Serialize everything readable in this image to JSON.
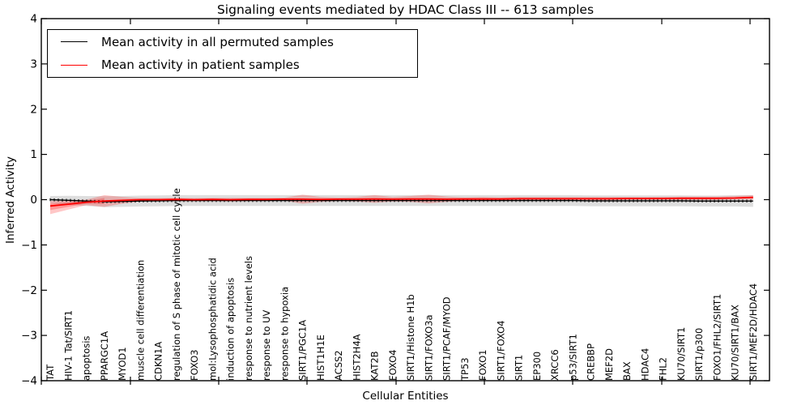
{
  "title": "Signaling events mediated by HDAC Class III -- 613 samples",
  "legend": {
    "items": [
      {
        "label": "Mean activity in all permuted samples",
        "color": "#000000"
      },
      {
        "label": "Mean activity in patient samples",
        "color": "#ff0000"
      }
    ]
  },
  "chart_data": {
    "type": "line",
    "title": "Signaling events mediated by HDAC Class III -- 613 samples",
    "xlabel": "Cellular Entities",
    "ylabel": "Inferred Activity",
    "ylim": [
      -4,
      4
    ],
    "yticks": [
      4,
      3,
      2,
      1,
      0,
      -1,
      -2,
      -3,
      -4
    ],
    "grid": false,
    "legend_position": "upper left",
    "categories": [
      "TAT",
      "HIV-1 Tat/SIRT1",
      "apoptosis",
      "PPARGC1A",
      "MYOD1",
      "muscle cell differentiation",
      "CDKN1A",
      "regulation of S phase of mitotic cell cycle",
      "FOXO3",
      "mol:Lysophosphatidic acid",
      "induction of apoptosis",
      "response to nutrient levels",
      "response to UV",
      "response to hypoxia",
      "SIRT1/PGC1A",
      "HIST1H1E",
      "ACSS2",
      "HIST2H4A",
      "KAT2B",
      "FOXO4",
      "SIRT1/Histone H1b",
      "SIRT1/FOXO3a",
      "SIRT1/PCAF/MYOD",
      "TP53",
      "FOXO1",
      "SIRT1/FOXO4",
      "SIRT1",
      "EP300",
      "XRCC6",
      "p53/SIRT1",
      "CREBBP",
      "MEF2D",
      "BAX",
      "HDAC4",
      "FHL2",
      "KU70/SIRT1",
      "SIRT1/p300",
      "FOXO1/FHL2/SIRT1",
      "KU70/SIRT1/BAX",
      "SIRT1/MEF2D/HDAC4"
    ],
    "series": [
      {
        "name": "Mean activity in all permuted samples",
        "color": "#000000",
        "band_color": "#888888",
        "mean": [
          0,
          -0.015,
          -0.03,
          -0.045,
          -0.04,
          -0.03,
          -0.025,
          -0.02,
          -0.02,
          -0.02,
          -0.02,
          -0.02,
          -0.02,
          -0.02,
          -0.02,
          -0.02,
          -0.02,
          -0.02,
          -0.02,
          -0.02,
          -0.02,
          -0.02,
          -0.02,
          -0.02,
          -0.02,
          -0.02,
          -0.02,
          -0.02,
          -0.02,
          -0.02,
          -0.025,
          -0.025,
          -0.025,
          -0.025,
          -0.025,
          -0.025,
          -0.03,
          -0.03,
          -0.03,
          -0.03
        ],
        "band_hi": [
          0.08,
          0.085,
          0.08,
          0.075,
          0.08,
          0.09,
          0.095,
          0.1,
          0.1,
          0.1,
          0.1,
          0.1,
          0.1,
          0.1,
          0.1,
          0.1,
          0.1,
          0.1,
          0.1,
          0.1,
          0.1,
          0.1,
          0.1,
          0.1,
          0.1,
          0.1,
          0.1,
          0.1,
          0.1,
          0.1,
          0.095,
          0.095,
          0.095,
          0.095,
          0.095,
          0.095,
          0.09,
          0.09,
          0.1,
          0.1
        ],
        "band_lo": [
          -0.08,
          -0.115,
          -0.14,
          -0.165,
          -0.16,
          -0.15,
          -0.145,
          -0.14,
          -0.14,
          -0.14,
          -0.14,
          -0.14,
          -0.14,
          -0.14,
          -0.14,
          -0.14,
          -0.14,
          -0.14,
          -0.14,
          -0.14,
          -0.14,
          -0.14,
          -0.14,
          -0.14,
          -0.14,
          -0.14,
          -0.14,
          -0.14,
          -0.14,
          -0.14,
          -0.145,
          -0.145,
          -0.145,
          -0.145,
          -0.145,
          -0.145,
          -0.15,
          -0.15,
          -0.15,
          -0.16
        ]
      },
      {
        "name": "Mean activity in patient samples",
        "color": "#ff0000",
        "band_color": "#ff0000",
        "mean": [
          -0.14,
          -0.1,
          -0.055,
          -0.03,
          -0.015,
          0,
          0,
          0.005,
          0,
          0.005,
          0,
          0.005,
          0.005,
          0.01,
          0.01,
          0.005,
          0.01,
          0.01,
          0.015,
          0.01,
          0.015,
          0.015,
          0.01,
          0.015,
          0.015,
          0.015,
          0.02,
          0.02,
          0.02,
          0.02,
          0.02,
          0.02,
          0.025,
          0.025,
          0.025,
          0.03,
          0.03,
          0.03,
          0.035,
          0.05
        ],
        "band_hi": [
          -0.03,
          -0.02,
          0,
          0.1,
          0.06,
          0.035,
          0.035,
          0.04,
          0.035,
          0.04,
          0.04,
          0.04,
          0.04,
          0.045,
          0.11,
          0.06,
          0.05,
          0.06,
          0.1,
          0.06,
          0.08,
          0.11,
          0.07,
          0.05,
          0.06,
          0.05,
          0.06,
          0.06,
          0.06,
          0.06,
          0.06,
          0.06,
          0.06,
          0.06,
          0.065,
          0.07,
          0.07,
          0.07,
          0.08,
          0.1
        ],
        "band_lo": [
          -0.32,
          -0.22,
          -0.12,
          -0.16,
          -0.09,
          -0.035,
          -0.035,
          -0.03,
          -0.035,
          -0.03,
          -0.04,
          -0.03,
          -0.03,
          -0.025,
          -0.09,
          -0.05,
          -0.03,
          -0.04,
          -0.07,
          -0.04,
          -0.05,
          -0.08,
          -0.05,
          -0.02,
          -0.03,
          -0.02,
          -0.02,
          -0.02,
          -0.02,
          -0.02,
          -0.02,
          -0.02,
          -0.01,
          -0.01,
          -0.015,
          -0.01,
          -0.01,
          -0.01,
          0,
          0
        ]
      }
    ]
  }
}
